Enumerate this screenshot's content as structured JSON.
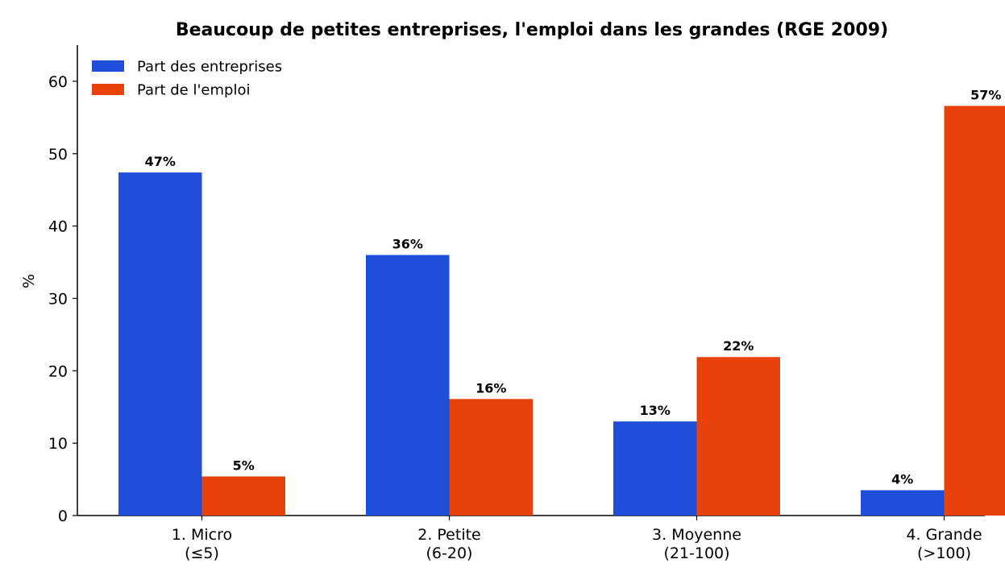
{
  "chart_data": {
    "type": "bar",
    "title": "Beaucoup de petites entreprises, l'emploi dans les grandes (RGE 2009)",
    "xlabel": "",
    "ylabel": "%",
    "categories": [
      [
        "1. Micro",
        "(≤5)"
      ],
      [
        "2. Petite",
        "(6-20)"
      ],
      [
        "3. Moyenne",
        "(21-100)"
      ],
      [
        "4. Grande",
        "(>100)"
      ]
    ],
    "series": [
      {
        "name": "Part des entreprises",
        "color": "#1f4fd8",
        "values": [
          47.4,
          36.0,
          13.0,
          3.5
        ],
        "labels": [
          "47%",
          "36%",
          "13%",
          "4%"
        ]
      },
      {
        "name": "Part de l'emploi",
        "color": "#e8410c",
        "values": [
          5.4,
          16.1,
          21.9,
          56.6
        ],
        "labels": [
          "5%",
          "16%",
          "22%",
          "57%"
        ]
      }
    ],
    "ylim": [
      0,
      65
    ],
    "yticks": [
      0,
      10,
      20,
      30,
      40,
      50,
      60
    ],
    "legend_position": "top-left",
    "grid": false
  }
}
